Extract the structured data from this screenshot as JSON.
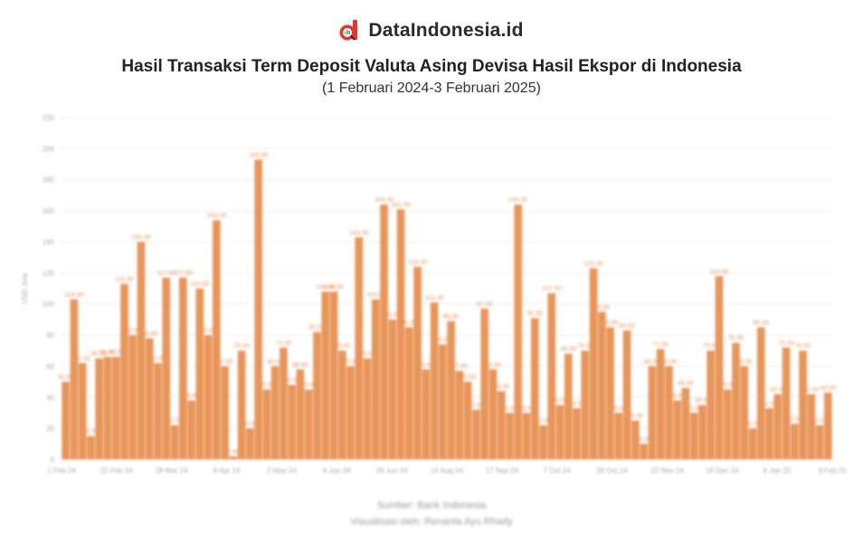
{
  "brand": {
    "name": "DataIndonesia.id",
    "logo_icon": "dataindonesia-logo-icon",
    "accent": "#E8352B"
  },
  "title": "Hasil Transaksi Term Deposit Valuta Asing Devisa Hasil Ekspor di Indonesia",
  "subtitle": "(1 Februari 2024-3 Februari 2025)",
  "footer": {
    "source": "Sumber: Bank Indonesia",
    "credit": "Visualisasi oleh: Renanta Ayu Rhady"
  },
  "chart_data": {
    "type": "bar",
    "title": "Hasil Transaksi Term Deposit Valuta Asing Devisa Hasil Ekspor di Indonesia",
    "subtitle": "(1 Februari 2024-3 Februari 2025)",
    "xlabel": "",
    "ylabel": "USD Juta",
    "ylim": [
      0,
      220
    ],
    "yticks": [
      0,
      20,
      40,
      60,
      80,
      100,
      120,
      140,
      160,
      180,
      200,
      220
    ],
    "grid": true,
    "legend": "none",
    "bar_color": "#E8955A",
    "xtick_labels": [
      "1 Feb 24",
      "22 Feb 24",
      "28 Mar 24",
      "8 Apr 24",
      "2 May 24",
      "6 Jun 24",
      "26 Jun 24",
      "15 Aug 24",
      "17 Sep 24",
      "7 Oct 24",
      "28 Oct 24",
      "22 Nov 24",
      "16 Dec 24",
      "6 Jan 25",
      "3 Feb 25"
    ],
    "values": [
      50,
      103,
      62,
      15,
      65,
      66,
      66,
      113,
      80,
      140,
      78,
      62,
      117,
      22,
      117,
      38,
      110,
      80,
      154,
      60,
      2,
      70,
      20,
      193,
      45,
      60,
      72,
      48,
      58,
      45,
      82,
      108,
      108,
      70,
      60,
      143,
      65,
      103,
      164,
      90,
      161,
      85,
      124,
      58,
      101,
      74,
      89,
      57,
      50,
      32,
      97,
      58,
      44,
      30,
      164,
      30,
      91,
      22,
      107,
      35,
      68,
      33,
      70,
      123,
      95,
      85,
      30,
      83,
      25,
      10,
      60,
      71,
      60,
      38,
      46,
      30,
      35,
      70,
      118,
      45,
      75,
      60,
      20,
      85,
      33,
      42,
      72,
      23,
      70,
      42,
      22,
      43
    ],
    "source": "Sumber: Bank Indonesia"
  }
}
